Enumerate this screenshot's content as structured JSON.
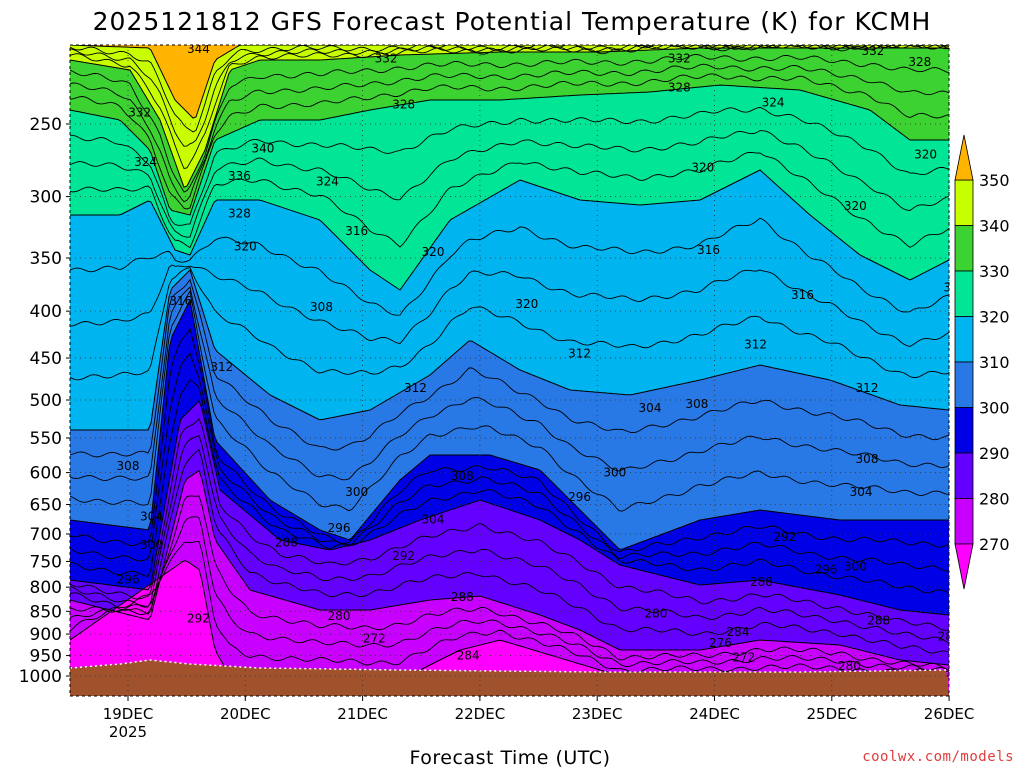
{
  "chart_data": {
    "type": "heatmap",
    "title": "2025121812 GFS Forecast Potential Temperature (K) for KCMH",
    "xlabel": "Forecast Time (UTC)",
    "ylabel": "",
    "x_tick_labels": [
      "19DEC",
      "20DEC",
      "21DEC",
      "22DEC",
      "23DEC",
      "24DEC",
      "25DEC",
      "26DEC"
    ],
    "x_year_label": "2025",
    "y_tick_labels": [
      "250",
      "300",
      "350",
      "400",
      "450",
      "500",
      "550",
      "600",
      "650",
      "700",
      "750",
      "800",
      "850",
      "900",
      "950",
      "1000"
    ],
    "y_scale": "log",
    "ylim": [
      1000,
      200
    ],
    "colorbar": {
      "levels": [
        270,
        280,
        290,
        300,
        310,
        320,
        330,
        340,
        350
      ],
      "colors": [
        "#ff00ff",
        "#c800ff",
        "#6400ff",
        "#0000e6",
        "#2878e6",
        "#00b4f0",
        "#00e696",
        "#3cd232",
        "#c8ff00",
        "#ffff00",
        "#ffb400"
      ],
      "extend": "both"
    },
    "contour_labels": [
      {
        "text": "344",
        "x": 0.6,
        "p": 207
      },
      {
        "text": "332",
        "x": 2.2,
        "p": 212
      },
      {
        "text": "332",
        "x": 4.7,
        "p": 212
      },
      {
        "text": "332",
        "x": 6.35,
        "p": 208
      },
      {
        "text": "328",
        "x": 6.75,
        "p": 214
      },
      {
        "text": "328",
        "x": 2.35,
        "p": 238
      },
      {
        "text": "328",
        "x": 4.7,
        "p": 228
      },
      {
        "text": "328",
        "x": 8.3,
        "p": 220
      },
      {
        "text": "324",
        "x": 5.5,
        "p": 237
      },
      {
        "text": "324",
        "x": 7.25,
        "p": 235
      },
      {
        "text": "332",
        "x": 0.1,
        "p": 243
      },
      {
        "text": "340",
        "x": 1.15,
        "p": 266
      },
      {
        "text": "324",
        "x": 0.15,
        "p": 275
      },
      {
        "text": "336",
        "x": 0.95,
        "p": 285
      },
      {
        "text": "324",
        "x": 1.7,
        "p": 289
      },
      {
        "text": "320",
        "x": 4.9,
        "p": 279
      },
      {
        "text": "320",
        "x": 6.8,
        "p": 270
      },
      {
        "text": "320",
        "x": 7.6,
        "p": 283
      },
      {
        "text": "324",
        "x": 8.1,
        "p": 295
      },
      {
        "text": "320",
        "x": 6.2,
        "p": 307
      },
      {
        "text": "328",
        "x": 0.95,
        "p": 313
      },
      {
        "text": "316",
        "x": 1.95,
        "p": 327
      },
      {
        "text": "320",
        "x": 2.6,
        "p": 345
      },
      {
        "text": "320",
        "x": 1.0,
        "p": 340
      },
      {
        "text": "316",
        "x": 4.95,
        "p": 343
      },
      {
        "text": "316",
        "x": 7.05,
        "p": 377
      },
      {
        "text": "316",
        "x": 0.45,
        "p": 390
      },
      {
        "text": "308",
        "x": 1.65,
        "p": 396
      },
      {
        "text": "320",
        "x": 3.4,
        "p": 393
      },
      {
        "text": "316",
        "x": 5.75,
        "p": 384
      },
      {
        "text": "316",
        "x": 7.95,
        "p": 425
      },
      {
        "text": "320",
        "x": 8.35,
        "p": 412
      },
      {
        "text": "312",
        "x": 3.85,
        "p": 445
      },
      {
        "text": "312",
        "x": 5.35,
        "p": 435
      },
      {
        "text": "312",
        "x": 0.8,
        "p": 460
      },
      {
        "text": "312",
        "x": 2.45,
        "p": 485
      },
      {
        "text": "312",
        "x": 6.3,
        "p": 485
      },
      {
        "text": "312",
        "x": 7.85,
        "p": 485
      },
      {
        "text": "304",
        "x": 4.45,
        "p": 510
      },
      {
        "text": "308",
        "x": 4.85,
        "p": 505
      },
      {
        "text": "308",
        "x": 0.0,
        "p": 590
      },
      {
        "text": "308",
        "x": 6.3,
        "p": 580
      },
      {
        "text": "308",
        "x": 7.95,
        "p": 600
      },
      {
        "text": "308",
        "x": 2.85,
        "p": 605
      },
      {
        "text": "300",
        "x": 4.15,
        "p": 600
      },
      {
        "text": "300",
        "x": 1.95,
        "p": 630
      },
      {
        "text": "304",
        "x": 6.25,
        "p": 630
      },
      {
        "text": "304",
        "x": 7.8,
        "p": 675
      },
      {
        "text": "304",
        "x": 0.2,
        "p": 670
      },
      {
        "text": "296",
        "x": 3.85,
        "p": 638
      },
      {
        "text": "304",
        "x": 2.6,
        "p": 675
      },
      {
        "text": "296",
        "x": 1.8,
        "p": 690
      },
      {
        "text": "292",
        "x": 2.35,
        "p": 740
      },
      {
        "text": "300",
        "x": 0.2,
        "p": 720
      },
      {
        "text": "288",
        "x": 1.35,
        "p": 715
      },
      {
        "text": "292",
        "x": 5.6,
        "p": 705
      },
      {
        "text": "300",
        "x": 7.8,
        "p": 735
      },
      {
        "text": "296",
        "x": 5.95,
        "p": 765
      },
      {
        "text": "300",
        "x": 6.2,
        "p": 760
      },
      {
        "text": "296",
        "x": 0.0,
        "p": 785
      },
      {
        "text": "288",
        "x": 2.85,
        "p": 820
      },
      {
        "text": "288",
        "x": 5.4,
        "p": 790
      },
      {
        "text": "296",
        "x": 7.75,
        "p": 815
      },
      {
        "text": "288",
        "x": 6.4,
        "p": 870
      },
      {
        "text": "292",
        "x": 0.6,
        "p": 865
      },
      {
        "text": "280",
        "x": 1.8,
        "p": 860
      },
      {
        "text": "280",
        "x": 4.5,
        "p": 855
      },
      {
        "text": "292",
        "x": 7.75,
        "p": 875
      },
      {
        "text": "272",
        "x": 2.1,
        "p": 910
      },
      {
        "text": "284",
        "x": 5.2,
        "p": 895
      },
      {
        "text": "284",
        "x": 7.0,
        "p": 905
      },
      {
        "text": "276",
        "x": 5.05,
        "p": 920
      },
      {
        "text": "284",
        "x": 2.9,
        "p": 950
      },
      {
        "text": "272",
        "x": 5.25,
        "p": 955
      },
      {
        "text": "288",
        "x": 8.15,
        "p": 955
      },
      {
        "text": "280",
        "x": 6.15,
        "p": 975
      }
    ]
  },
  "credit": "coolwx.com/models"
}
